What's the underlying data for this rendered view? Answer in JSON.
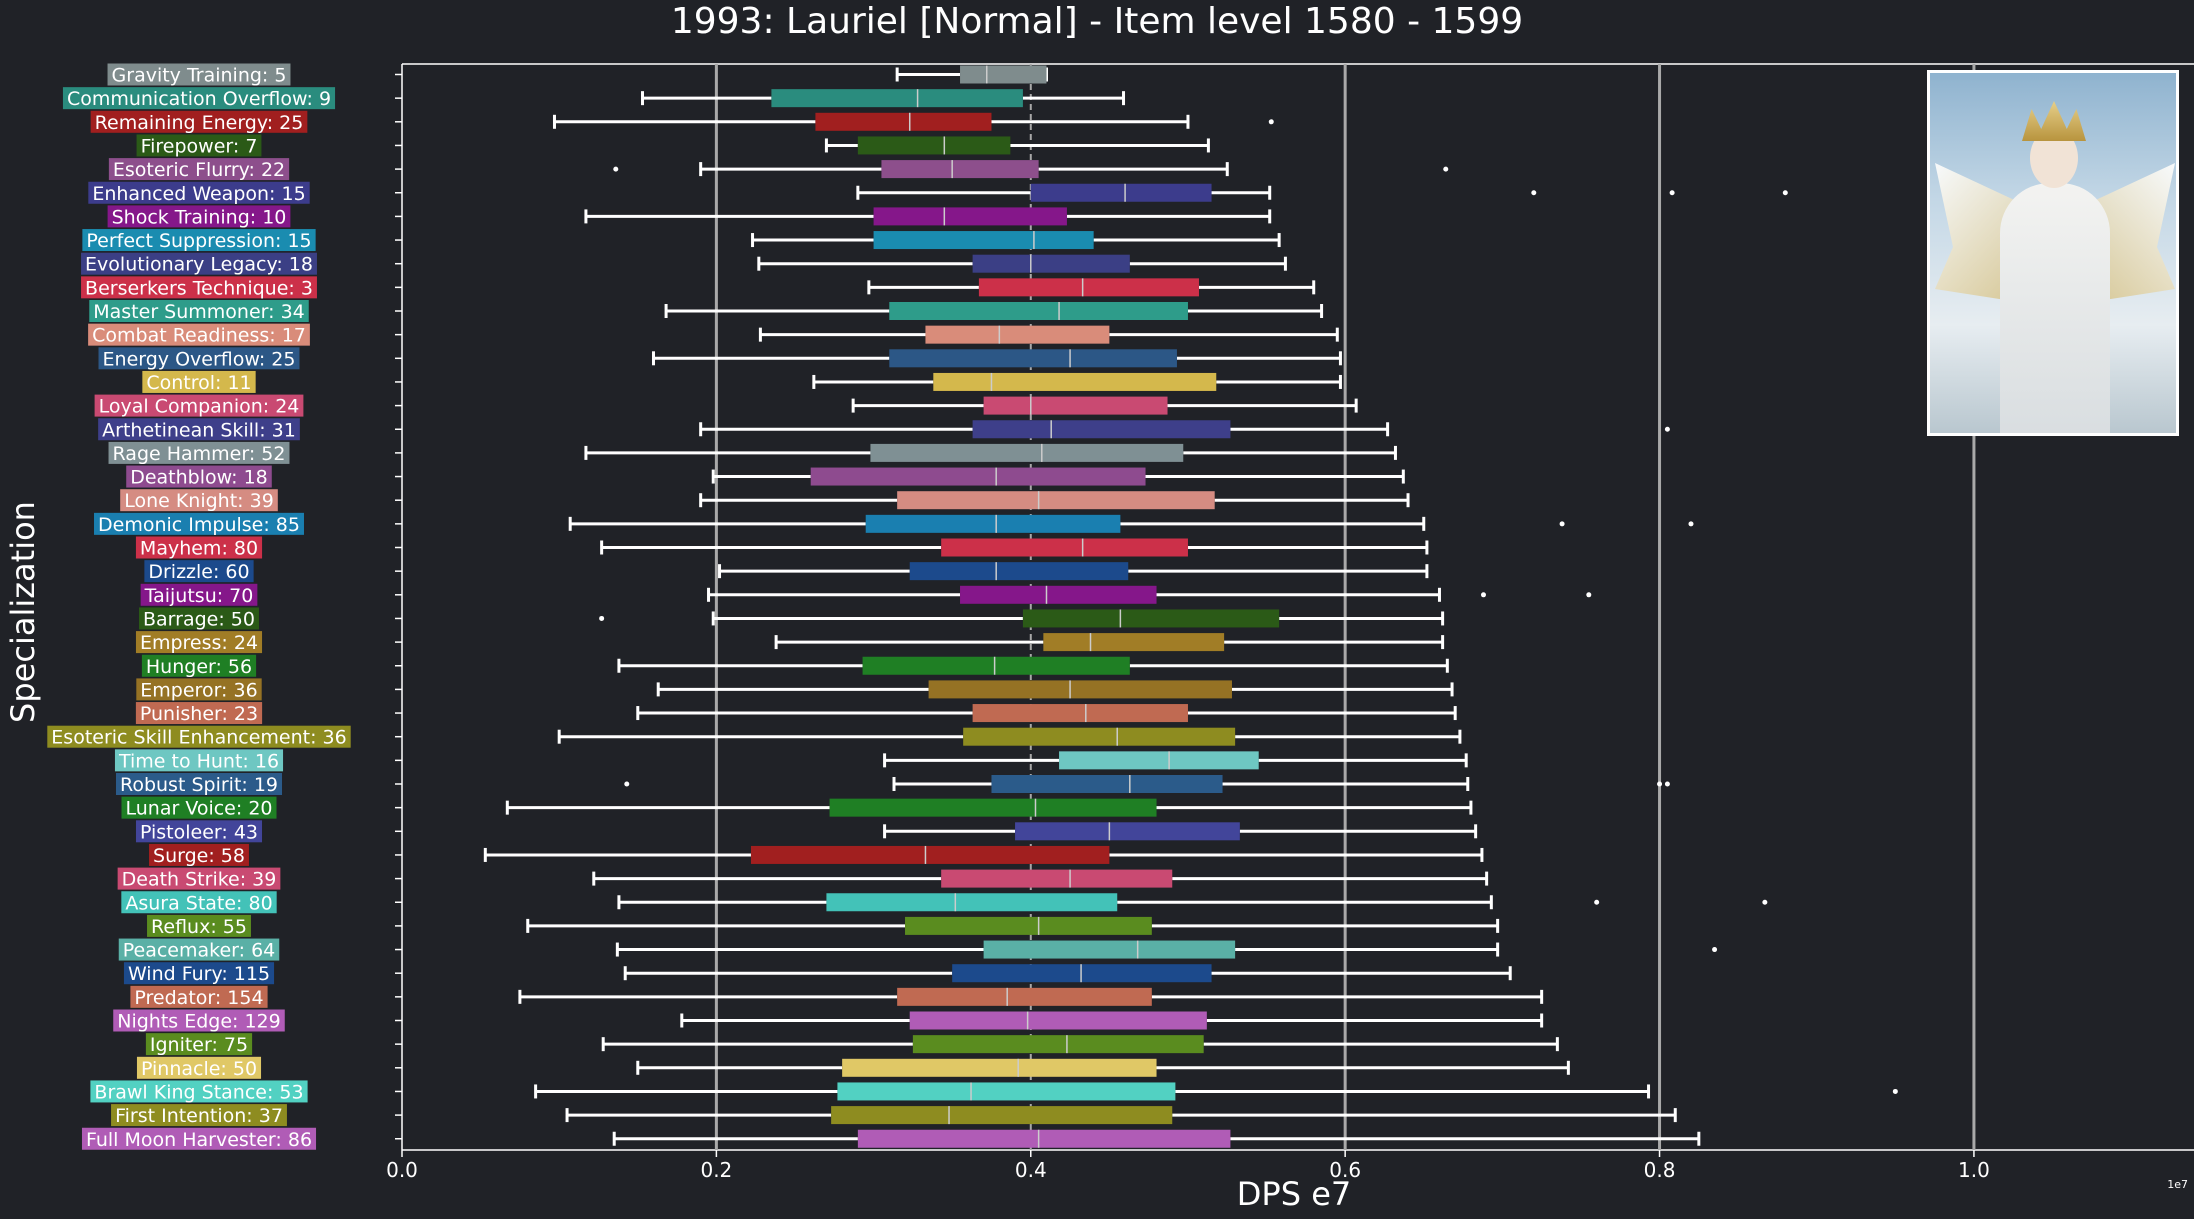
{
  "chart_data": {
    "type": "boxplot",
    "title": "1993: Lauriel [Normal] - Item level 1580 - 1599",
    "xlabel": "DPS e7",
    "ylabel": "Specialization",
    "x_offset_label": "1e7",
    "xlim": [
      0,
      1.14
    ],
    "xticks": [
      0.0,
      0.2,
      0.4,
      0.6,
      0.8,
      1.0
    ],
    "xtick_labels": [
      "0.0",
      "0.2",
      "0.4",
      "0.6",
      "0.8",
      "1.0"
    ],
    "vertical_reference_lines": [
      0.2,
      0.6,
      0.8,
      1.0
    ],
    "median_reference_line": 0.4,
    "orientation": "horizontal",
    "series": [
      {
        "label": "Gravity Training: 5",
        "color": "#7f8c8d",
        "whisker_low": 0.315,
        "q1": 0.355,
        "median": 0.372,
        "q3": 0.41,
        "whisker_high": 0.41,
        "outliers": []
      },
      {
        "label": "Communication Overflow: 9",
        "color": "#2a8c7e",
        "whisker_low": 0.153,
        "q1": 0.235,
        "median": 0.328,
        "q3": 0.395,
        "whisker_high": 0.459,
        "outliers": []
      },
      {
        "label": "Remaining Energy: 25",
        "color": "#a11f1f",
        "whisker_low": 0.097,
        "q1": 0.263,
        "median": 0.323,
        "q3": 0.375,
        "whisker_high": 0.5,
        "outliers": [
          0.553
        ]
      },
      {
        "label": "Firepower: 7",
        "color": "#2b5a17",
        "whisker_low": 0.27,
        "q1": 0.29,
        "median": 0.345,
        "q3": 0.387,
        "whisker_high": 0.513,
        "outliers": []
      },
      {
        "label": "Esoteric Flurry: 22",
        "color": "#8d4f8c",
        "whisker_low": 0.19,
        "q1": 0.305,
        "median": 0.35,
        "q3": 0.405,
        "whisker_high": 0.525,
        "outliers": [
          0.136,
          0.664
        ]
      },
      {
        "label": "Enhanced Weapon: 15",
        "color": "#3c3c8c",
        "whisker_low": 0.29,
        "q1": 0.4,
        "median": 0.46,
        "q3": 0.515,
        "whisker_high": 0.552,
        "outliers": [
          0.72,
          0.808,
          0.88
        ]
      },
      {
        "label": "Shock Training: 10",
        "color": "#85178a",
        "whisker_low": 0.117,
        "q1": 0.3,
        "median": 0.345,
        "q3": 0.423,
        "whisker_high": 0.552,
        "outliers": []
      },
      {
        "label": "Perfect Suppression: 15",
        "color": "#1a8cb0",
        "whisker_low": 0.223,
        "q1": 0.3,
        "median": 0.402,
        "q3": 0.44,
        "whisker_high": 0.558,
        "outliers": []
      },
      {
        "label": "Evolutionary Legacy: 18",
        "color": "#3b3f85",
        "whisker_low": 0.227,
        "q1": 0.363,
        "median": 0.4,
        "q3": 0.463,
        "whisker_high": 0.562,
        "outliers": []
      },
      {
        "label": "Berserkers Technique: 3",
        "color": "#cc3049",
        "whisker_low": 0.297,
        "q1": 0.367,
        "median": 0.433,
        "q3": 0.507,
        "whisker_high": 0.58,
        "outliers": []
      },
      {
        "label": "Master Summoner: 34",
        "color": "#2e9c8a",
        "whisker_low": 0.168,
        "q1": 0.31,
        "median": 0.418,
        "q3": 0.5,
        "whisker_high": 0.585,
        "outliers": []
      },
      {
        "label": "Combat Readiness: 17",
        "color": "#d98c7a",
        "whisker_low": 0.228,
        "q1": 0.333,
        "median": 0.38,
        "q3": 0.45,
        "whisker_high": 0.595,
        "outliers": []
      },
      {
        "label": "Energy Overflow: 25",
        "color": "#2c5786",
        "whisker_low": 0.16,
        "q1": 0.31,
        "median": 0.425,
        "q3": 0.493,
        "whisker_high": 0.597,
        "outliers": []
      },
      {
        "label": "Control: 11",
        "color": "#d4b84c",
        "whisker_low": 0.262,
        "q1": 0.338,
        "median": 0.375,
        "q3": 0.518,
        "whisker_high": 0.597,
        "outliers": []
      },
      {
        "label": "Loyal Companion: 24",
        "color": "#c94a72",
        "whisker_low": 0.287,
        "q1": 0.37,
        "median": 0.4,
        "q3": 0.487,
        "whisker_high": 0.607,
        "outliers": []
      },
      {
        "label": "Arthetinean Skill: 31",
        "color": "#3e3f8a",
        "whisker_low": 0.19,
        "q1": 0.363,
        "median": 0.413,
        "q3": 0.527,
        "whisker_high": 0.627,
        "outliers": [
          0.805
        ]
      },
      {
        "label": "Rage Hammer: 52",
        "color": "#7f9094",
        "whisker_low": 0.117,
        "q1": 0.298,
        "median": 0.407,
        "q3": 0.497,
        "whisker_high": 0.632,
        "outliers": []
      },
      {
        "label": "Deathblow: 18",
        "color": "#8e4b8f",
        "whisker_low": 0.198,
        "q1": 0.26,
        "median": 0.378,
        "q3": 0.473,
        "whisker_high": 0.637,
        "outliers": []
      },
      {
        "label": "Lone Knight: 39",
        "color": "#d58c82",
        "whisker_low": 0.19,
        "q1": 0.315,
        "median": 0.405,
        "q3": 0.517,
        "whisker_high": 0.64,
        "outliers": []
      },
      {
        "label": "Demonic Impulse: 85",
        "color": "#1a7fb0",
        "whisker_low": 0.107,
        "q1": 0.295,
        "median": 0.378,
        "q3": 0.457,
        "whisker_high": 0.65,
        "outliers": [
          0.738,
          0.82
        ]
      },
      {
        "label": "Mayhem: 80",
        "color": "#cc3049",
        "whisker_low": 0.127,
        "q1": 0.343,
        "median": 0.433,
        "q3": 0.5,
        "whisker_high": 0.652,
        "outliers": []
      },
      {
        "label": "Drizzle: 60",
        "color": "#1c4a8c",
        "whisker_low": 0.202,
        "q1": 0.323,
        "median": 0.378,
        "q3": 0.462,
        "whisker_high": 0.652,
        "outliers": []
      },
      {
        "label": "Taijutsu: 70",
        "color": "#85178a",
        "whisker_low": 0.195,
        "q1": 0.355,
        "median": 0.41,
        "q3": 0.48,
        "whisker_high": 0.66,
        "outliers": [
          0.688,
          0.755
        ]
      },
      {
        "label": "Barrage: 50",
        "color": "#2b5a17",
        "whisker_low": 0.198,
        "q1": 0.395,
        "median": 0.457,
        "q3": 0.558,
        "whisker_high": 0.662,
        "outliers": [
          0.127
        ]
      },
      {
        "label": "Empress: 24",
        "color": "#a17d26",
        "whisker_low": 0.238,
        "q1": 0.408,
        "median": 0.438,
        "q3": 0.523,
        "whisker_high": 0.662,
        "outliers": []
      },
      {
        "label": "Hunger: 56",
        "color": "#1f7f24",
        "whisker_low": 0.138,
        "q1": 0.293,
        "median": 0.377,
        "q3": 0.463,
        "whisker_high": 0.665,
        "outliers": []
      },
      {
        "label": "Emperor: 36",
        "color": "#957224",
        "whisker_low": 0.163,
        "q1": 0.335,
        "median": 0.425,
        "q3": 0.528,
        "whisker_high": 0.668,
        "outliers": []
      },
      {
        "label": "Punisher: 23",
        "color": "#c06a52",
        "whisker_low": 0.15,
        "q1": 0.363,
        "median": 0.435,
        "q3": 0.5,
        "whisker_high": 0.67,
        "outliers": []
      },
      {
        "label": "Esoteric Skill Enhancement: 36",
        "color": "#8e8c20",
        "whisker_low": 0.1,
        "q1": 0.357,
        "median": 0.455,
        "q3": 0.53,
        "whisker_high": 0.673,
        "outliers": []
      },
      {
        "label": "Time to Hunt: 16",
        "color": "#6ec7c2",
        "whisker_low": 0.307,
        "q1": 0.418,
        "median": 0.488,
        "q3": 0.545,
        "whisker_high": 0.677,
        "outliers": []
      },
      {
        "label": "Robust Spirit: 19",
        "color": "#2b5b8a",
        "whisker_low": 0.313,
        "q1": 0.375,
        "median": 0.463,
        "q3": 0.522,
        "whisker_high": 0.678,
        "outliers": [
          0.143,
          0.8,
          0.805
        ]
      },
      {
        "label": "Lunar Voice: 20",
        "color": "#1f7f24",
        "whisker_low": 0.067,
        "q1": 0.272,
        "median": 0.403,
        "q3": 0.48,
        "whisker_high": 0.68,
        "outliers": []
      },
      {
        "label": "Pistoleer: 43",
        "color": "#42459a",
        "whisker_low": 0.307,
        "q1": 0.39,
        "median": 0.45,
        "q3": 0.533,
        "whisker_high": 0.683,
        "outliers": []
      },
      {
        "label": "Surge: 58",
        "color": "#a11f1f",
        "whisker_low": 0.053,
        "q1": 0.222,
        "median": 0.333,
        "q3": 0.45,
        "whisker_high": 0.687,
        "outliers": []
      },
      {
        "label": "Death Strike: 39",
        "color": "#c94a72",
        "whisker_low": 0.122,
        "q1": 0.343,
        "median": 0.425,
        "q3": 0.49,
        "whisker_high": 0.69,
        "outliers": []
      },
      {
        "label": "Asura State: 80",
        "color": "#43c2b8",
        "whisker_low": 0.138,
        "q1": 0.27,
        "median": 0.352,
        "q3": 0.455,
        "whisker_high": 0.693,
        "outliers": [
          0.76,
          0.867
        ]
      },
      {
        "label": "Reflux: 55",
        "color": "#5a8c1f",
        "whisker_low": 0.08,
        "q1": 0.32,
        "median": 0.405,
        "q3": 0.477,
        "whisker_high": 0.697,
        "outliers": []
      },
      {
        "label": "Peacemaker: 64",
        "color": "#5ab0a6",
        "whisker_low": 0.137,
        "q1": 0.37,
        "median": 0.468,
        "q3": 0.53,
        "whisker_high": 0.697,
        "outliers": [
          0.835
        ]
      },
      {
        "label": "Wind Fury: 115",
        "color": "#1c4a8c",
        "whisker_low": 0.142,
        "q1": 0.35,
        "median": 0.432,
        "q3": 0.515,
        "whisker_high": 0.705,
        "outliers": []
      },
      {
        "label": "Predator: 154",
        "color": "#c06a52",
        "whisker_low": 0.075,
        "q1": 0.315,
        "median": 0.385,
        "q3": 0.477,
        "whisker_high": 0.725,
        "outliers": []
      },
      {
        "label": "Nights Edge: 129",
        "color": "#b05cb6",
        "whisker_low": 0.178,
        "q1": 0.323,
        "median": 0.398,
        "q3": 0.512,
        "whisker_high": 0.725,
        "outliers": []
      },
      {
        "label": "Igniter: 75",
        "color": "#5a8c1f",
        "whisker_low": 0.128,
        "q1": 0.325,
        "median": 0.423,
        "q3": 0.51,
        "whisker_high": 0.735,
        "outliers": []
      },
      {
        "label": "Pinnacle: 50",
        "color": "#e0c866",
        "whisker_low": 0.15,
        "q1": 0.28,
        "median": 0.392,
        "q3": 0.48,
        "whisker_high": 0.742,
        "outliers": []
      },
      {
        "label": "Brawl King Stance: 53",
        "color": "#52d1c2",
        "whisker_low": 0.085,
        "q1": 0.277,
        "median": 0.362,
        "q3": 0.492,
        "whisker_high": 0.793,
        "outliers": [
          0.95
        ]
      },
      {
        "label": "First Intention: 37",
        "color": "#8e8c20",
        "whisker_low": 0.105,
        "q1": 0.273,
        "median": 0.348,
        "q3": 0.49,
        "whisker_high": 0.81,
        "outliers": []
      },
      {
        "label": "Full Moon Harvester: 86",
        "color": "#b05cb6",
        "whisker_low": 0.135,
        "q1": 0.29,
        "median": 0.405,
        "q3": 0.527,
        "whisker_high": 0.825,
        "outliers": []
      }
    ]
  },
  "portrait": {
    "icon": "character-portrait-icon"
  }
}
